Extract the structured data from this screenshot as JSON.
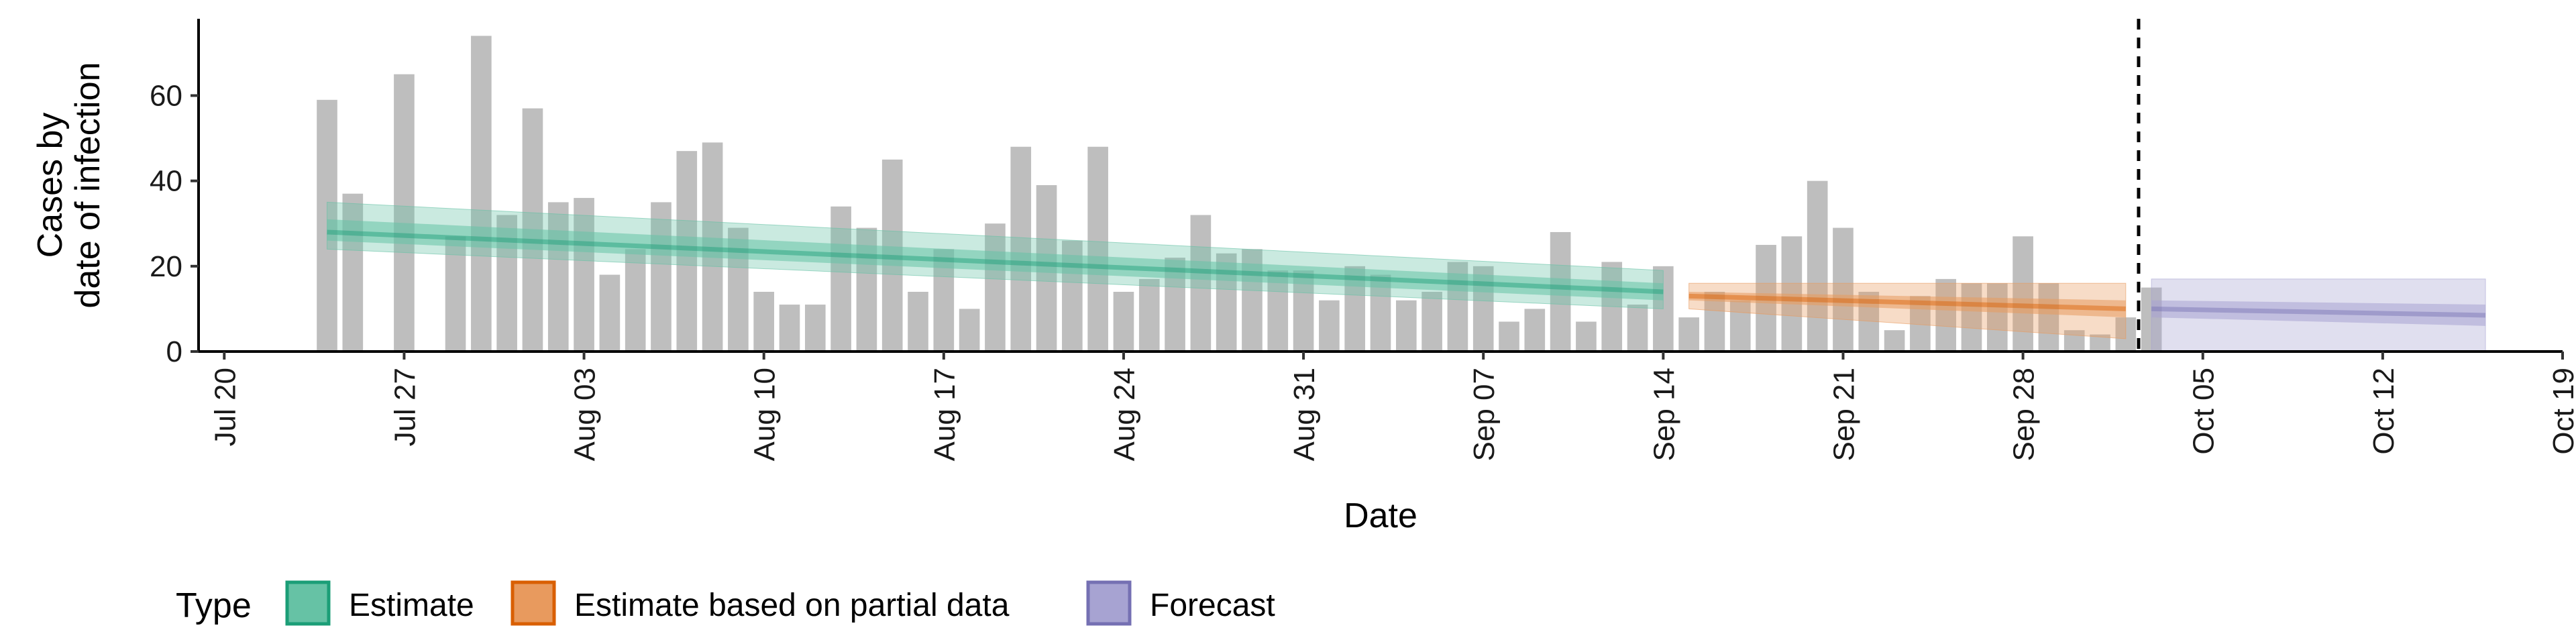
{
  "chart_data": {
    "type": "bar",
    "xlabel": "Date",
    "ylabel_lines": [
      "Cases by",
      "date of infection"
    ],
    "ylim": [
      0,
      78
    ],
    "y_ticks": [
      0,
      20,
      40,
      60
    ],
    "x_range": [
      "2020-07-19",
      "2020-10-19"
    ],
    "x_ticks": [
      {
        "date": "2020-07-20",
        "label": "Jul 20"
      },
      {
        "date": "2020-07-27",
        "label": "Jul 27"
      },
      {
        "date": "2020-08-03",
        "label": "Aug 03"
      },
      {
        "date": "2020-08-10",
        "label": "Aug 10"
      },
      {
        "date": "2020-08-17",
        "label": "Aug 17"
      },
      {
        "date": "2020-08-24",
        "label": "Aug 24"
      },
      {
        "date": "2020-08-31",
        "label": "Aug 31"
      },
      {
        "date": "2020-09-07",
        "label": "Sep 07"
      },
      {
        "date": "2020-09-14",
        "label": "Sep 14"
      },
      {
        "date": "2020-09-21",
        "label": "Sep 21"
      },
      {
        "date": "2020-09-28",
        "label": "Sep 28"
      },
      {
        "date": "2020-10-05",
        "label": "Oct 05"
      },
      {
        "date": "2020-10-12",
        "label": "Oct 12"
      },
      {
        "date": "2020-10-19",
        "label": "Oct 19"
      }
    ],
    "bars": {
      "first_date": "2020-07-24",
      "values": [
        59,
        37,
        0,
        65,
        0,
        27,
        74,
        32,
        57,
        35,
        36,
        18,
        24,
        35,
        47,
        49,
        29,
        14,
        11,
        11,
        34,
        29,
        45,
        14,
        24,
        10,
        30,
        48,
        39,
        26,
        48,
        14,
        17,
        22,
        32,
        23,
        24,
        19,
        19,
        12,
        20,
        18,
        12,
        14,
        21,
        20,
        7,
        10,
        28,
        7,
        21,
        11,
        20,
        8,
        14,
        12,
        25,
        27,
        40,
        29,
        14,
        5,
        13,
        17,
        16,
        16,
        27,
        16,
        5,
        4,
        8,
        15
      ],
      "color": "#bebebe"
    },
    "vline_date": "2020-10-02",
    "series": [
      {
        "name": "Estimate",
        "color": "#1b9e77",
        "fill": "#66c2a5",
        "start": "2020-07-24",
        "end": "2020-09-14",
        "median": [
          28,
          14
        ],
        "inner": [
          [
            26,
            31
          ],
          [
            12,
            16
          ]
        ],
        "outer": [
          [
            24,
            35
          ],
          [
            10,
            19
          ]
        ]
      },
      {
        "name": "Estimate based on partial data",
        "color": "#d95f02",
        "fill": "#e89a5e",
        "start": "2020-09-15",
        "end": "2020-10-02",
        "median": [
          13,
          10
        ],
        "inner": [
          [
            12,
            14
          ],
          [
            8,
            12
          ]
        ],
        "outer": [
          [
            10,
            16
          ],
          [
            3,
            16
          ]
        ]
      },
      {
        "name": "Forecast",
        "color": "#7570b3",
        "fill": "#a7a3d2",
        "start": "2020-10-03",
        "end": "2020-10-16",
        "median": [
          10,
          8.5
        ],
        "inner": [
          [
            8,
            12
          ],
          [
            6,
            11
          ]
        ],
        "outer": [
          [
            0,
            17
          ],
          [
            0,
            17
          ]
        ]
      }
    ],
    "legend": {
      "title": "Type",
      "position": "bottom",
      "items": [
        "Estimate",
        "Estimate based on partial data",
        "Forecast"
      ]
    },
    "grid": false
  }
}
